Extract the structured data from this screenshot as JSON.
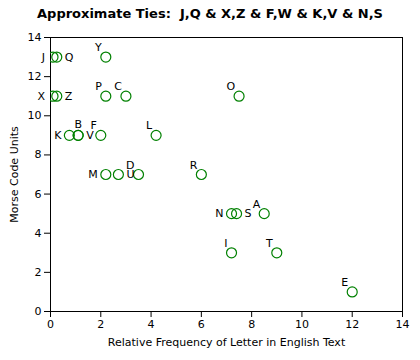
{
  "chart_data": {
    "type": "scatter",
    "title": "Approximate Ties:  J,Q & X,Z & F,W & K,V & N,S",
    "xlabel": "Relative Frequency of Letter in English Text",
    "ylabel": "Morse Code Units",
    "labels": [
      "J",
      "Q",
      "X",
      "Z",
      "Y",
      "P",
      "C",
      "O",
      "K",
      "B",
      "V",
      "F",
      "L",
      "M",
      "U",
      "D",
      "R",
      "N",
      "S",
      "A",
      "I",
      "T",
      "E"
    ],
    "x": [
      0.1,
      0.25,
      0.1,
      0.25,
      2.2,
      2.2,
      3.0,
      7.5,
      0.75,
      1.1,
      1.1,
      2.0,
      4.2,
      2.2,
      2.7,
      3.5,
      6.0,
      7.2,
      7.4,
      8.5,
      7.2,
      9.0,
      12.0
    ],
    "y": [
      13,
      13,
      11,
      11,
      13,
      11,
      11,
      11,
      9,
      9,
      9,
      9,
      9,
      7,
      7,
      7,
      7,
      5,
      5,
      5,
      3,
      3,
      1
    ],
    "xlim": [
      0,
      14
    ],
    "ylim": [
      0,
      14
    ],
    "xticks": [
      0,
      2,
      4,
      6,
      8,
      10,
      12,
      14
    ],
    "yticks": [
      0,
      2,
      4,
      6,
      8,
      10,
      12,
      14
    ],
    "color": "#008000",
    "marker": "circle",
    "grid": false
  }
}
